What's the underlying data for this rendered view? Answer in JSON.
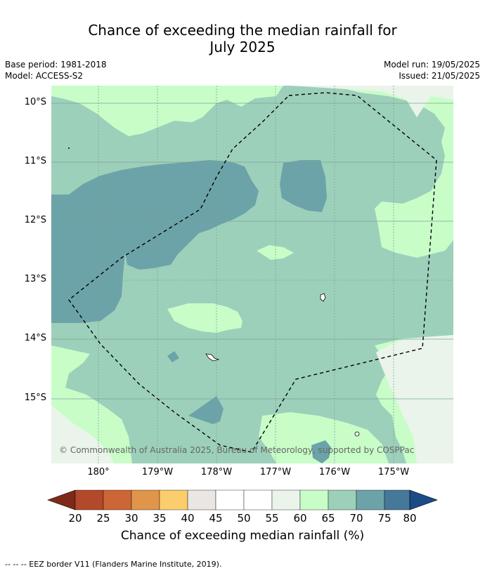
{
  "title_line1": "Chance of exceeding the median rainfall for",
  "title_line2": "July 2025",
  "meta": {
    "base_period": "Base period: 1981-2018",
    "model": "Model: ACCESS-S2",
    "model_run": "Model run: 19/05/2025",
    "issued": "Issued: 21/05/2025"
  },
  "lat_labels": [
    "10°S",
    "11°S",
    "12°S",
    "13°S",
    "14°S",
    "15°S"
  ],
  "lon_labels": [
    "180°",
    "179°W",
    "178°W",
    "177°W",
    "176°W",
    "175°W"
  ],
  "colors": {
    "c20": "#7d2a1a",
    "c25": "#b2492a",
    "c30": "#cd6637",
    "c35": "#e0954b",
    "c40": "#fbcd6c",
    "c45": "#e9e6e3",
    "c50": "#ffffff",
    "c55": "#ffffff",
    "c60": "#eaf4ea",
    "c65": "#c8fdc8",
    "c70": "#9dd0ba",
    "c75": "#6ca3a8",
    "c80": "#45799a",
    "c85": "#1c4b86"
  },
  "colorbar": {
    "ticks": [
      "20",
      "25",
      "30",
      "35",
      "40",
      "45",
      "50",
      "55",
      "60",
      "65",
      "70",
      "75",
      "80"
    ],
    "title": "Chance of exceeding median rainfall (%)"
  },
  "copyright": "© Commonwealth of Australia 2025, Bureau of Meteorology, supported by COSPPac",
  "footnote": "--  --  -- EEZ border V11 (Flanders Marine Institute, 2019)."
}
